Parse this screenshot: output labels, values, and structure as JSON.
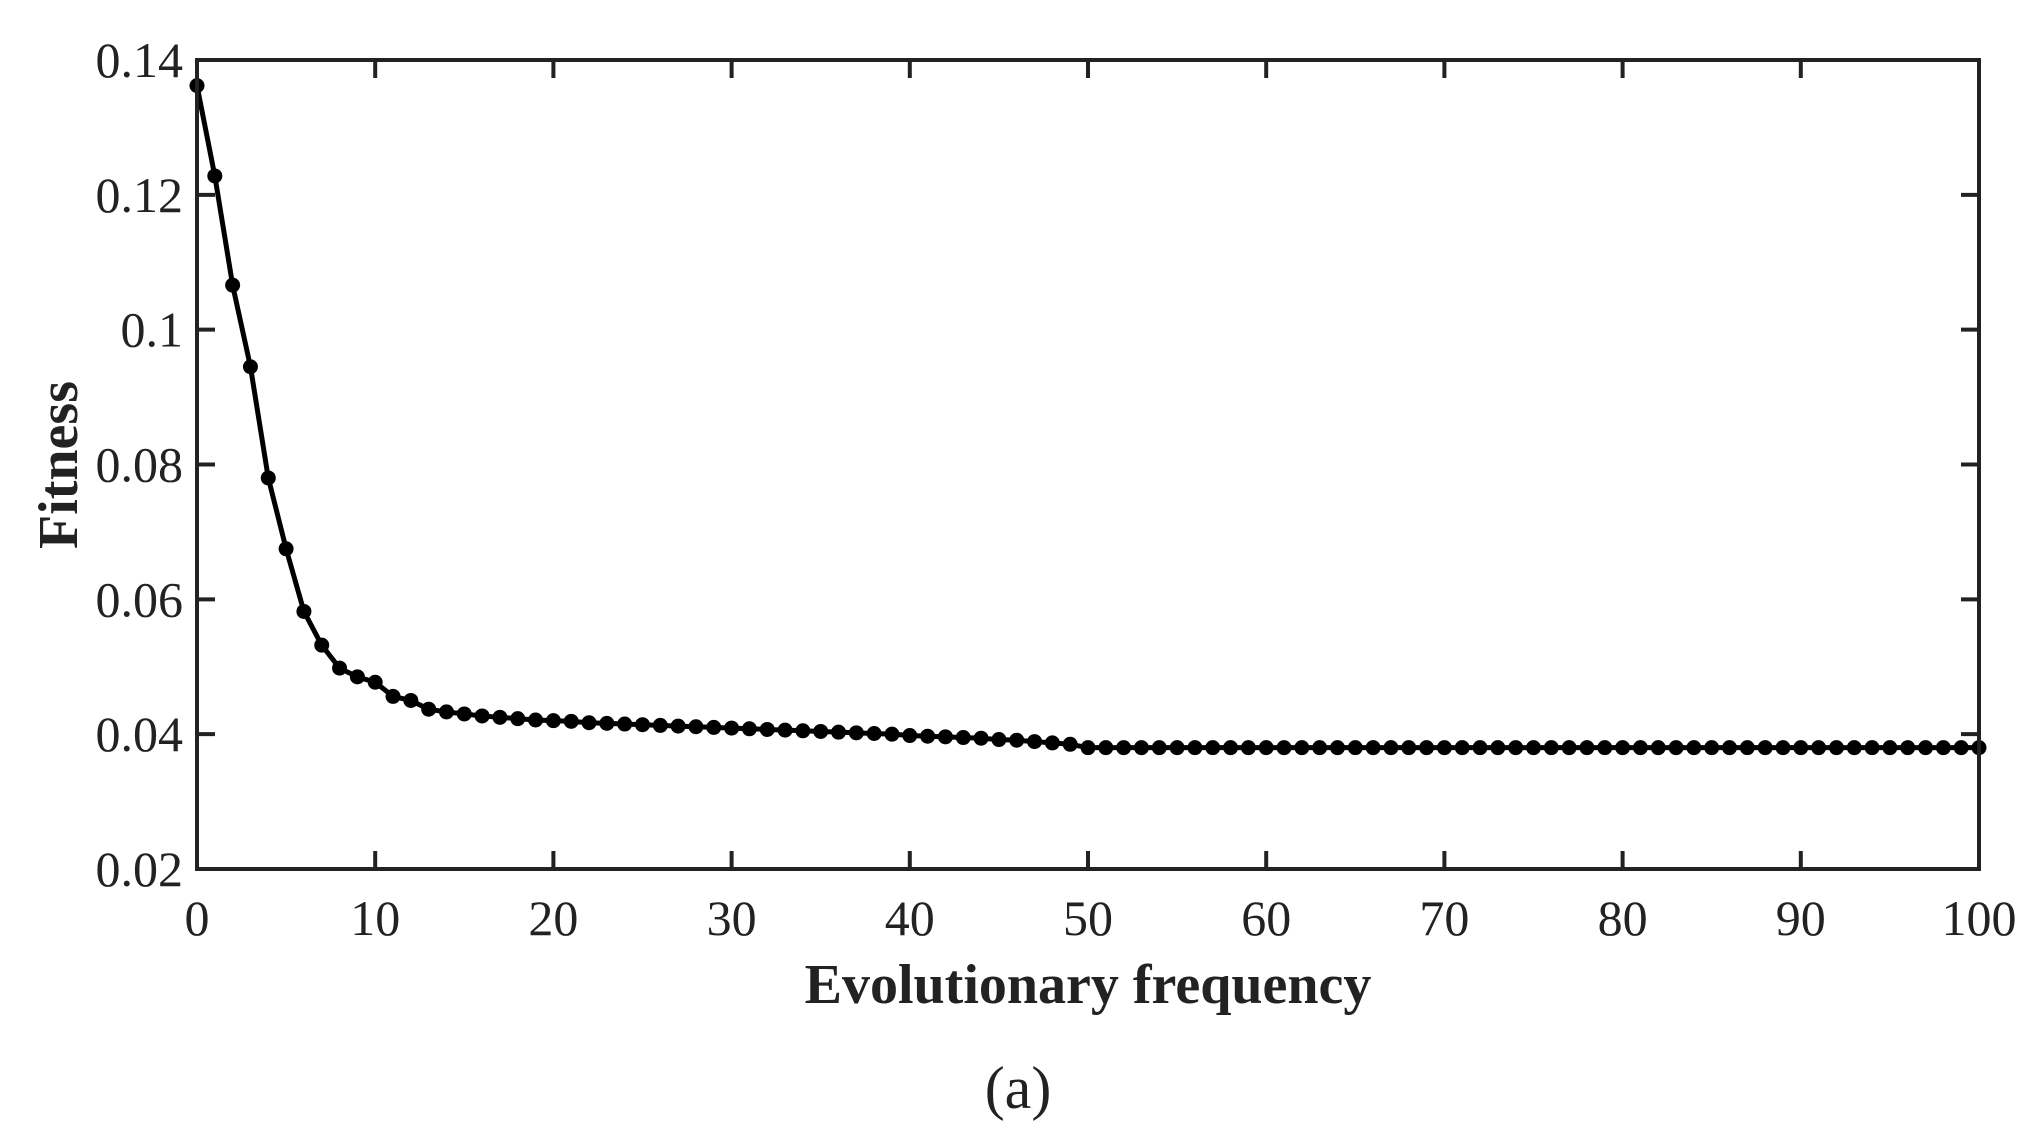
{
  "chart_data": {
    "type": "line",
    "xlabel": "Evolutionary frequency",
    "ylabel": "Fitness",
    "panel_label": "(a)",
    "xlim": [
      0,
      100
    ],
    "ylim": [
      0.02,
      0.14
    ],
    "xticks": [
      0,
      10,
      20,
      30,
      40,
      50,
      60,
      70,
      80,
      90,
      100
    ],
    "xtick_labels": [
      "0",
      "10",
      "20",
      "30",
      "40",
      "50",
      "60",
      "70",
      "80",
      "90",
      "100"
    ],
    "yticks": [
      0.02,
      0.04,
      0.06,
      0.08,
      0.1,
      0.12,
      0.14
    ],
    "ytick_labels": [
      "0.02",
      "0.04",
      "0.06",
      "0.08",
      "0.1",
      "0.12",
      "0.14"
    ],
    "grid": false,
    "line_color": "#000000",
    "marker": "filled-circle",
    "series": [
      {
        "x": [
          0,
          1,
          2,
          3,
          4,
          5,
          6,
          7,
          8,
          9,
          10,
          11,
          12,
          13,
          14,
          15,
          16,
          17,
          18,
          19,
          20,
          21,
          22,
          23,
          24,
          25,
          26,
          27,
          28,
          29,
          30,
          31,
          32,
          33,
          34,
          35,
          36,
          37,
          38,
          39,
          40,
          41,
          42,
          43,
          44,
          45,
          46,
          47,
          48,
          49,
          50,
          51,
          52,
          53,
          54,
          55,
          56,
          57,
          58,
          59,
          60,
          61,
          62,
          63,
          64,
          65,
          66,
          67,
          68,
          69,
          70,
          71,
          72,
          73,
          74,
          75,
          76,
          77,
          78,
          79,
          80,
          81,
          82,
          83,
          84,
          85,
          86,
          87,
          88,
          89,
          90,
          91,
          92,
          93,
          94,
          95,
          96,
          97,
          98,
          99,
          100
        ],
        "values": [
          0.1362,
          0.1228,
          0.1066,
          0.0945,
          0.078,
          0.0675,
          0.0582,
          0.0532,
          0.0498,
          0.0485,
          0.0477,
          0.0456,
          0.045,
          0.0437,
          0.0433,
          0.043,
          0.0427,
          0.0425,
          0.0423,
          0.0421,
          0.042,
          0.0419,
          0.0417,
          0.0416,
          0.0415,
          0.0414,
          0.0413,
          0.0412,
          0.0411,
          0.041,
          0.0409,
          0.0408,
          0.0407,
          0.0406,
          0.0405,
          0.0404,
          0.0403,
          0.0402,
          0.0401,
          0.04,
          0.0398,
          0.0397,
          0.0396,
          0.0395,
          0.0394,
          0.0392,
          0.0391,
          0.0389,
          0.0387,
          0.0385,
          0.038,
          0.038,
          0.038,
          0.038,
          0.038,
          0.038,
          0.038,
          0.038,
          0.038,
          0.038,
          0.038,
          0.038,
          0.038,
          0.038,
          0.038,
          0.038,
          0.038,
          0.038,
          0.038,
          0.038,
          0.038,
          0.038,
          0.038,
          0.038,
          0.038,
          0.038,
          0.038,
          0.038,
          0.038,
          0.038,
          0.038,
          0.038,
          0.038,
          0.038,
          0.038,
          0.038,
          0.038,
          0.038,
          0.038,
          0.038,
          0.038,
          0.038,
          0.038,
          0.038,
          0.038,
          0.038,
          0.038,
          0.038,
          0.038,
          0.038,
          0.038
        ]
      }
    ]
  }
}
